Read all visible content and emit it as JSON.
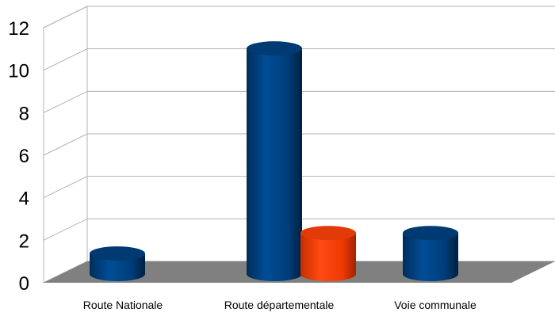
{
  "chart_data": {
    "type": "bar",
    "categories": [
      "Route Nationale",
      "Route départementale",
      "Voie communale"
    ],
    "series": [
      {
        "values": [
          1,
          11,
          2
        ],
        "color": "#004586"
      },
      {
        "values": [
          null,
          2,
          null
        ],
        "color": "#ff420e"
      }
    ],
    "yticks": [
      "0",
      "2",
      "4",
      "6",
      "8",
      "10",
      "12"
    ],
    "ylim": [
      0,
      12
    ],
    "grid": true,
    "legend": "none",
    "title": "",
    "xlabel": "",
    "ylabel": "",
    "floor_color": "#808080"
  }
}
